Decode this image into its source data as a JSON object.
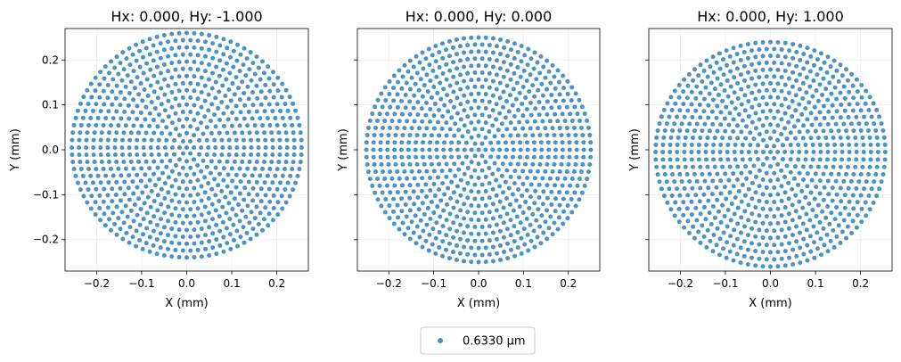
{
  "chart_data": [
    {
      "type": "scatter",
      "title": "Hx: 0.000, Hy: -1.000",
      "xlabel": "X (mm)",
      "ylabel": "Y (mm)",
      "xlim": [
        -0.27,
        0.27
      ],
      "ylim": [
        -0.27,
        0.27
      ],
      "xticks": [
        -0.2,
        -0.1,
        0.0,
        0.1,
        0.2
      ],
      "yticks": [
        -0.2,
        -0.1,
        0.0,
        0.1,
        0.2
      ],
      "xtick_labels": [
        "−0.2",
        "−0.1",
        "0.0",
        "0.1",
        "0.2"
      ],
      "ytick_labels": [
        "−0.2",
        "−0.1",
        "0.0",
        "0.1",
        "0.2"
      ],
      "show_ylabels": true,
      "grid": true,
      "pattern": {
        "rings": 16,
        "radius": 0.255,
        "y_center": 0.005,
        "y_scale_top": 1.0,
        "y_scale_bottom": 0.96
      },
      "series": [
        {
          "name": "0.6330 µm",
          "color": "#1f77b4"
        }
      ]
    },
    {
      "type": "scatter",
      "title": "Hx: 0.000, Hy: 0.000",
      "xlabel": "X (mm)",
      "ylabel": "Y (mm)",
      "xlim": [
        -0.27,
        0.27
      ],
      "ylim": [
        -0.27,
        0.27
      ],
      "xticks": [
        -0.2,
        -0.1,
        0.0,
        0.1,
        0.2
      ],
      "yticks": [
        -0.2,
        -0.1,
        0.0,
        0.1,
        0.2
      ],
      "xtick_labels": [
        "−0.2",
        "−0.1",
        "0.0",
        "0.1",
        "0.2"
      ],
      "ytick_labels": [],
      "show_ylabels": false,
      "grid": true,
      "pattern": {
        "rings": 16,
        "radius": 0.25,
        "y_center": 0.0,
        "y_scale_top": 1.0,
        "y_scale_bottom": 1.0
      },
      "series": [
        {
          "name": "0.6330 µm",
          "color": "#1f77b4"
        }
      ]
    },
    {
      "type": "scatter",
      "title": "Hx: 0.000, Hy: 1.000",
      "xlabel": "X (mm)",
      "ylabel": "Y (mm)",
      "xlim": [
        -0.27,
        0.27
      ],
      "ylim": [
        -0.27,
        0.27
      ],
      "xticks": [
        -0.2,
        -0.1,
        0.0,
        0.1,
        0.2
      ],
      "yticks": [
        -0.2,
        -0.1,
        0.0,
        0.1,
        0.2
      ],
      "xtick_labels": [
        "−0.2",
        "−0.1",
        "0.0",
        "0.1",
        "0.2"
      ],
      "ytick_labels": [],
      "show_ylabels": false,
      "grid": true,
      "pattern": {
        "rings": 16,
        "radius": 0.255,
        "y_center": -0.005,
        "y_scale_top": 0.96,
        "y_scale_bottom": 1.0
      },
      "series": [
        {
          "name": "0.6330 µm",
          "color": "#1f77b4"
        }
      ]
    }
  ],
  "legend": {
    "placement": "bottom-center",
    "entries": [
      {
        "label": "0.6330 µm",
        "color": "#1f77b4"
      }
    ]
  }
}
